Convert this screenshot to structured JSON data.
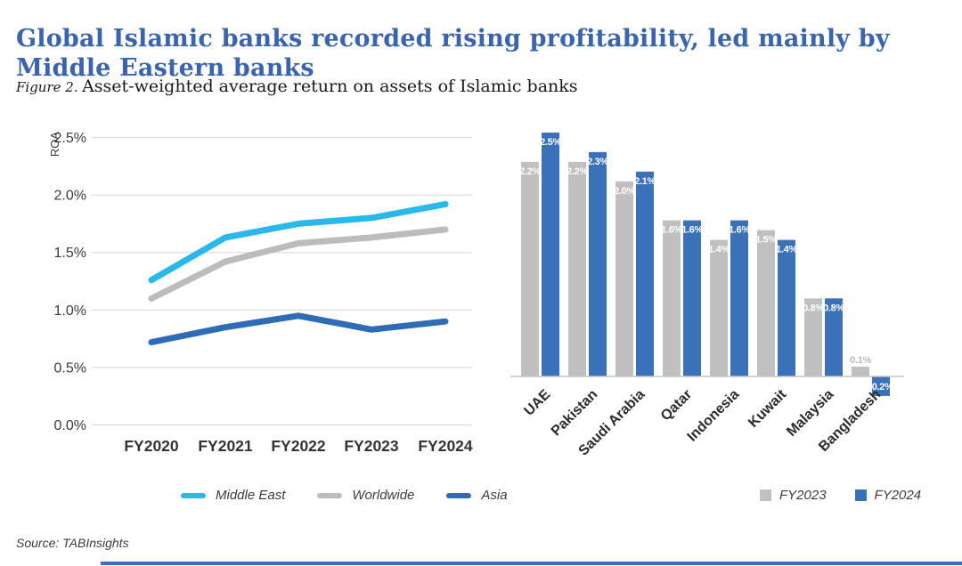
{
  "header": {
    "title_line1": "Global Islamic banks recorded rising profitability, led mainly by",
    "title_line2": "Middle Eastern banks",
    "figure_label": "Figure 2.",
    "figure_caption": "Asset-weighted average return on assets of Islamic banks"
  },
  "source": "Source: TABInsights",
  "colors": {
    "title_blue": "#3a65ae",
    "middle_east_cyan": "#29b8e8",
    "worldwide_gray": "#bcbcbc",
    "asia_blue": "#2e6cb6",
    "bar_gray": "#c0c0c0",
    "bar_blue": "#3b71b8",
    "grid_gray": "#dcdcdc",
    "axis_text": "#3a3a3a",
    "tick_text": "#3a3a3a",
    "category_text": "#2b2b2b",
    "small_bar_label_gray": "#b9b9b9",
    "bottom_rule_blue": "#3b71b8"
  },
  "chart_data": [
    {
      "type": "line",
      "name": "roa-trend",
      "ylabel": "ROA",
      "x": [
        "FY2020",
        "FY2021",
        "FY2022",
        "FY2023",
        "FY2024"
      ],
      "y_ticks": [
        "2.5%",
        "2.0%",
        "1.5%",
        "1.0%",
        "0.5%",
        "0.0%"
      ],
      "ylim": [
        0.0,
        2.5
      ],
      "grid": true,
      "legend_position": "bottom",
      "series": [
        {
          "name": "Middle East",
          "color": "#29b8e8",
          "values": [
            1.26,
            1.63,
            1.75,
            1.8,
            1.92
          ]
        },
        {
          "name": "Worldwide",
          "color": "#bcbcbc",
          "values": [
            1.1,
            1.42,
            1.58,
            1.63,
            1.7
          ]
        },
        {
          "name": "Asia",
          "color": "#2e6cb6",
          "values": [
            0.72,
            0.85,
            0.95,
            0.83,
            0.9
          ]
        }
      ]
    },
    {
      "type": "bar",
      "name": "roa-by-country",
      "categories": [
        "UAE",
        "Pakistan",
        "Saudi Arabia",
        "Qatar",
        "Indonesia",
        "Kuwait",
        "Malaysia",
        "Bangladesh"
      ],
      "ylim": [
        -0.3,
        2.6
      ],
      "grid": false,
      "legend_position": "bottom-right",
      "series": [
        {
          "name": "FY2023",
          "color": "#c0c0c0",
          "values": [
            2.2,
            2.2,
            2.0,
            1.6,
            1.4,
            1.5,
            0.8,
            0.1
          ],
          "labels": [
            "2.2%",
            "2.2%",
            "2.0%",
            "1.6%",
            "1.4%",
            "1.5%",
            "0.8%",
            "0.1%"
          ]
        },
        {
          "name": "FY2024",
          "color": "#3b71b8",
          "values": [
            2.5,
            2.3,
            2.1,
            1.6,
            1.6,
            1.4,
            0.8,
            -0.2
          ],
          "labels": [
            "2.5%",
            "2.3%",
            "2.1%",
            "1.6%",
            "1.6%",
            "1.4%",
            "0.8%",
            "-0.2%"
          ]
        }
      ]
    }
  ]
}
